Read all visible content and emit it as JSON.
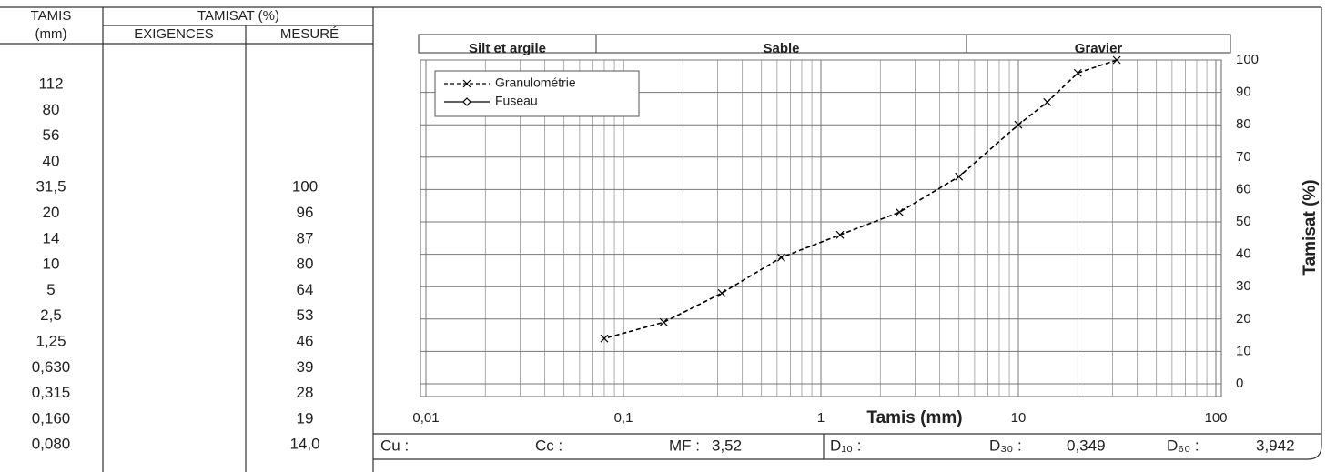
{
  "table": {
    "header": {
      "tamis": "TAMIS",
      "tamis_unit": "(mm)",
      "tamisat": "TAMISAT (%)",
      "exigences": "EXIGENCES",
      "mesure": "MESURÉ"
    },
    "rows": [
      {
        "tamis": "112"
      },
      {
        "tamis": "80"
      },
      {
        "tamis": "56"
      },
      {
        "tamis": "40"
      },
      {
        "tamis": "31,5",
        "mesure": "100"
      },
      {
        "tamis": "20",
        "mesure": "96"
      },
      {
        "tamis": "14",
        "mesure": "87"
      },
      {
        "tamis": "10",
        "mesure": "80"
      },
      {
        "tamis": "5",
        "mesure": "64"
      },
      {
        "tamis": "2,5",
        "mesure": "53"
      },
      {
        "tamis": "1,25",
        "mesure": "46"
      },
      {
        "tamis": "0,630",
        "mesure": "39"
      },
      {
        "tamis": "0,315",
        "mesure": "28"
      },
      {
        "tamis": "0,160",
        "mesure": "19"
      },
      {
        "tamis": "0,080",
        "mesure": "14,0"
      }
    ]
  },
  "chart_data": {
    "type": "line",
    "bands": [
      "Silt et argile",
      "Sable",
      "Gravier"
    ],
    "x": [
      31.5,
      20,
      14,
      10,
      5,
      2.5,
      1.25,
      0.63,
      0.315,
      0.16,
      0.08
    ],
    "series": [
      {
        "name": "Granulométrie",
        "color": "#000000",
        "dashed": true,
        "marker": "x",
        "values": [
          100,
          96,
          87,
          80,
          64,
          53,
          46,
          39,
          28,
          19,
          14
        ]
      },
      {
        "name": "Fuseau",
        "color": "#000000",
        "dashed": false,
        "marker": "diamond",
        "values": [
          null,
          null,
          null,
          null,
          null,
          null,
          null,
          null,
          null,
          null,
          null
        ]
      }
    ],
    "xlim": [
      0.01,
      100
    ],
    "xticks": [
      {
        "value": 0.01,
        "label": "0,01"
      },
      {
        "value": 0.1,
        "label": "0,1"
      },
      1,
      10,
      100
    ],
    "log_x": true,
    "ylim": [
      0,
      100
    ],
    "yticks": [
      0,
      10,
      20,
      30,
      40,
      50,
      60,
      70,
      80,
      90,
      100
    ],
    "grid": true,
    "minor_grid": true,
    "legend": "upper left",
    "xlabel": "Tamis (mm)",
    "ylabel": "Tamisat (%)"
  },
  "summary": {
    "cu": "Cu :",
    "cc": "Cc :",
    "mf": "MF :",
    "mf_value": "3,52",
    "d10": "D₁₀ :",
    "d30": "D₃₀ :",
    "d30_value": "0,349",
    "d60": "D₆₀ :",
    "d60_value": "3,942"
  }
}
